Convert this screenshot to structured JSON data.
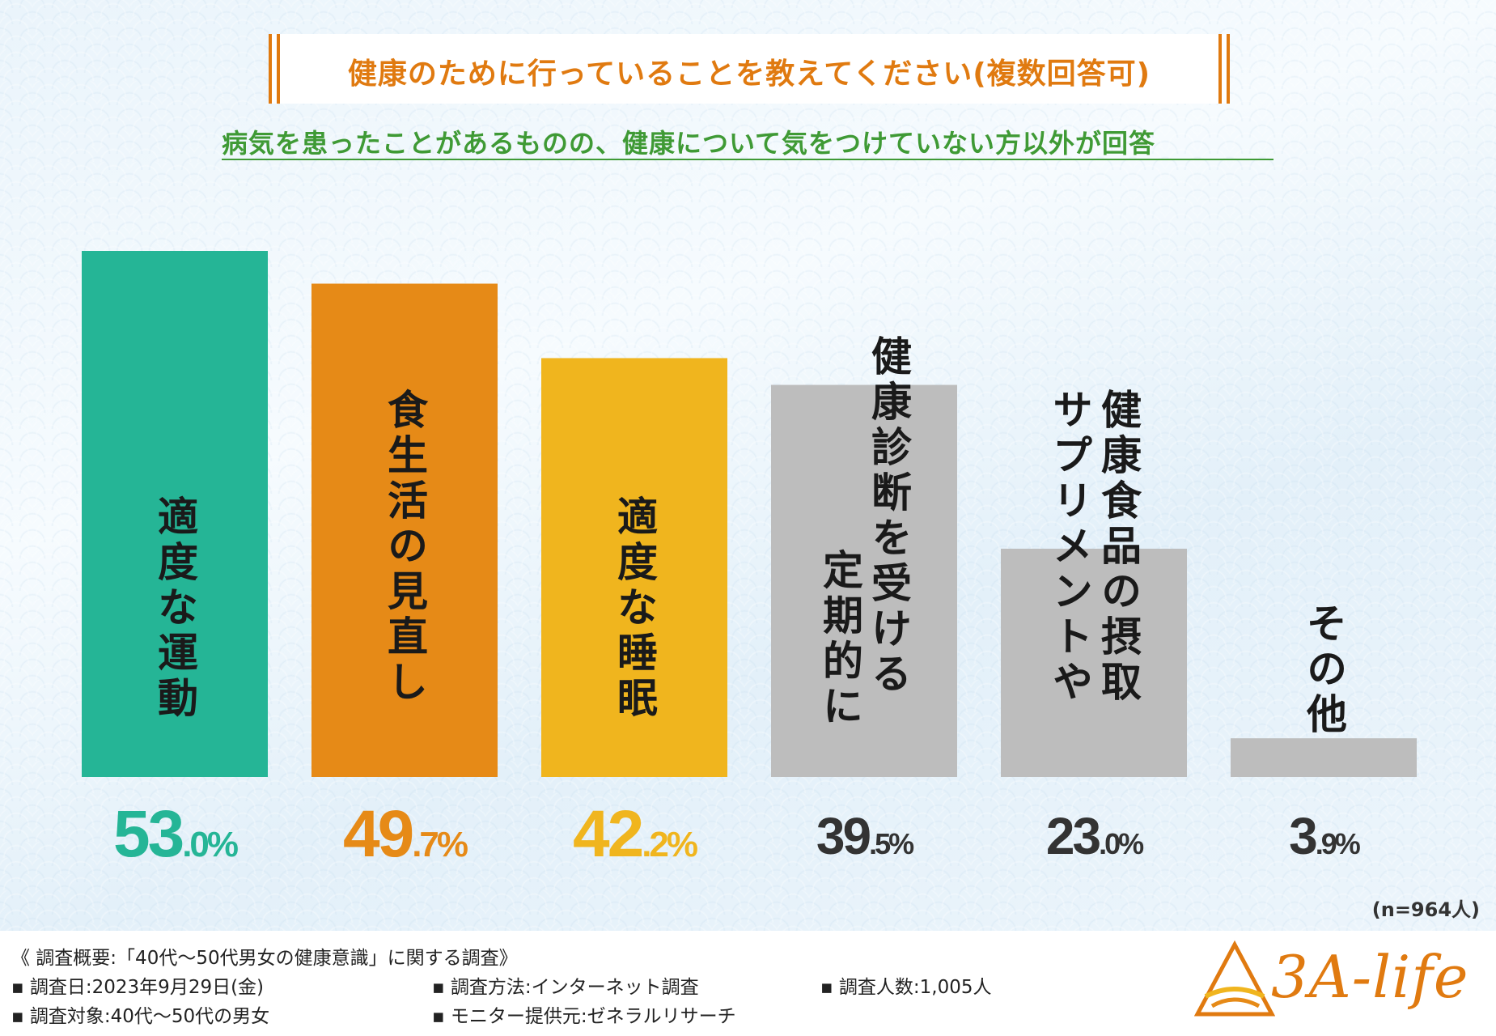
{
  "title": "健康のために行っていることを教えてください(複数回答可)",
  "subtitle": "病気を患ったことがあるものの、健康について気をつけていない方以外が回答",
  "chart_data": {
    "type": "bar",
    "categories": [
      "適度な運動",
      "食生活の見直し",
      "適度な睡眠",
      "定期的に健康診断を受ける",
      "サプリメントや健康食品の摂取",
      "その他"
    ],
    "values": [
      53.0,
      49.7,
      42.2,
      39.5,
      23.0,
      3.9
    ],
    "value_labels": [
      {
        "int": "53",
        "dec": ".0%"
      },
      {
        "int": "49",
        "dec": ".7%"
      },
      {
        "int": "42",
        "dec": ".2%"
      },
      {
        "int": "39",
        "dec": ".5%"
      },
      {
        "int": "23",
        "dec": ".0%"
      },
      {
        "int": "3",
        "dec": ".9%"
      }
    ],
    "label_columns": [
      [
        "適度な運動"
      ],
      [
        "食生活の見直し"
      ],
      [
        "適度な睡眠"
      ],
      [
        "健康診断を受ける",
        "定期的に"
      ],
      [
        "健康食品の摂取",
        "サプリメントや"
      ],
      [
        "その他"
      ]
    ],
    "colors": [
      "#25b596",
      "#e68a17",
      "#f0b51e",
      "#bdbdbd",
      "#bdbdbd",
      "#bdbdbd"
    ],
    "value_colors": [
      "#25b596",
      "#e68a17",
      "#f0b51e",
      "#333333",
      "#333333",
      "#333333"
    ],
    "ylim": [
      0,
      53.0
    ],
    "title": "健康のために行っていることを教えてください(複数回答可)",
    "xlabel": "",
    "ylabel": ""
  },
  "n_note": "(n=964人)",
  "footer": {
    "heading": "《 調査概要:「40代〜50代男女の健康意識」に関する調査》",
    "date": "▪ 調査日:2023年9月29日(金)",
    "method": "▪ 調査方法:インターネット調査",
    "count": "▪ 調査人数:1,005人",
    "target": "▪ 調査対象:40代〜50代の男女",
    "provider": "▪ モニター提供元:ゼネラルリサーチ"
  },
  "logo": {
    "text": "3A-life",
    "color": "#e07a10"
  }
}
